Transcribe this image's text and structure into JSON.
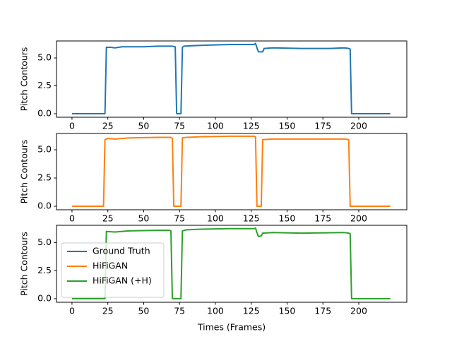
{
  "chart_data": [
    {
      "type": "line",
      "ylabel": "Pitch Contours",
      "x": [
        0,
        23,
        24,
        27,
        30,
        35,
        50,
        60,
        70,
        72,
        73,
        76,
        77,
        78,
        85,
        95,
        110,
        120,
        127,
        128,
        129,
        130,
        133,
        134,
        140,
        160,
        180,
        190,
        193,
        194,
        195,
        222
      ],
      "series": [
        {
          "name": "Ground Truth",
          "color": "#1f77b4",
          "values": [
            0,
            0,
            5.95,
            5.95,
            5.9,
            6.0,
            6.0,
            6.05,
            6.05,
            6.0,
            0,
            0,
            5.95,
            6.05,
            6.1,
            6.15,
            6.2,
            6.2,
            6.2,
            6.3,
            5.9,
            5.55,
            5.55,
            5.85,
            5.9,
            5.85,
            5.85,
            5.9,
            5.85,
            5.8,
            0,
            0
          ]
        }
      ],
      "xlim": [
        -10.8,
        233.5
      ],
      "xticks": [
        0,
        25,
        50,
        75,
        100,
        125,
        150,
        175,
        200
      ],
      "ylim": [
        -0.32,
        6.52
      ],
      "yticks": [
        {
          "value": 0,
          "label": "0.0"
        },
        2.5,
        {
          "value": 5,
          "label": "5.0"
        }
      ]
    },
    {
      "type": "line",
      "ylabel": "Pitch Contours",
      "x": [
        0,
        22,
        23,
        25,
        30,
        40,
        60,
        69,
        70,
        71,
        76,
        77,
        80,
        90,
        110,
        127,
        128,
        129,
        132,
        133,
        140,
        160,
        190,
        193,
        194,
        222
      ],
      "series": [
        {
          "name": "HiFiGAN",
          "color": "#ff7f0e",
          "values": [
            0,
            0,
            5.9,
            6.0,
            5.95,
            6.05,
            6.1,
            6.1,
            6.0,
            0,
            0,
            6.05,
            6.1,
            6.15,
            6.2,
            6.2,
            6.15,
            0,
            0,
            5.9,
            5.95,
            5.95,
            5.95,
            5.9,
            0,
            0
          ]
        }
      ],
      "xlim": [
        -10.8,
        233.5
      ],
      "xticks": [
        0,
        25,
        50,
        75,
        100,
        125,
        150,
        175,
        200
      ],
      "ylim": [
        -0.31,
        6.44
      ],
      "yticks": [
        {
          "value": 0,
          "label": "0.0"
        },
        2.5,
        {
          "value": 5,
          "label": "5.0"
        }
      ]
    },
    {
      "type": "line",
      "ylabel": "Pitch Contours",
      "xlabel": "Times (Frames)",
      "legend": "lower left",
      "x": [
        0,
        23,
        24,
        30,
        40,
        60,
        68,
        69,
        70,
        76,
        77,
        80,
        90,
        110,
        127,
        128,
        129,
        130,
        132,
        133,
        140,
        160,
        190,
        193,
        194,
        195,
        222
      ],
      "series": [
        {
          "name": "HiFiGAN (+H)",
          "color": "#2ca02c",
          "values": [
            0,
            0,
            6.0,
            5.95,
            6.05,
            6.1,
            6.1,
            6.05,
            0,
            0,
            6.05,
            6.15,
            6.2,
            6.25,
            6.25,
            6.3,
            5.9,
            5.55,
            5.6,
            5.85,
            5.9,
            5.85,
            5.9,
            5.85,
            5.8,
            0,
            0
          ]
        }
      ],
      "xlim": [
        -10.8,
        233.5
      ],
      "xticks": [
        0,
        25,
        50,
        75,
        100,
        125,
        150,
        175,
        200
      ],
      "ylim": [
        -0.32,
        6.55
      ],
      "yticks": [
        {
          "value": 0,
          "label": "0.0"
        },
        2.5,
        {
          "value": 5,
          "label": "5.0"
        }
      ]
    }
  ]
}
